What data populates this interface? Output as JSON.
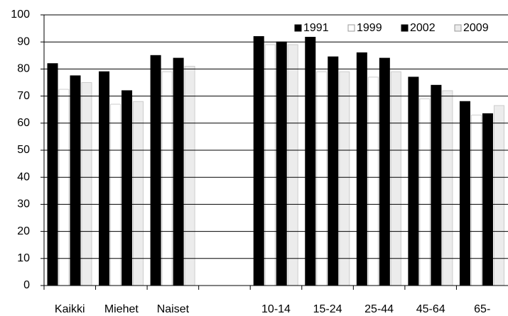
{
  "chart_data": {
    "type": "bar",
    "categories": [
      "Kaikki",
      "Miehet",
      "Naiset",
      null,
      "10-14",
      "15-24",
      "25-44",
      "45-64",
      "65-"
    ],
    "series": [
      {
        "name": "1991",
        "color": "#000000",
        "values": [
          82,
          79,
          85,
          null,
          92,
          92,
          86,
          77,
          68
        ]
      },
      {
        "name": "1999",
        "color": "#ffffff",
        "values": [
          72.5,
          67,
          79,
          null,
          89,
          79,
          77,
          69,
          63
        ]
      },
      {
        "name": "2002",
        "color": "#000000",
        "values": [
          77.5,
          72,
          84,
          null,
          90,
          84.5,
          84,
          74,
          63.5
        ]
      },
      {
        "name": "2009",
        "color": "#ececec",
        "values": [
          75,
          68,
          81,
          null,
          89,
          79,
          79,
          72,
          66.5
        ]
      }
    ],
    "ylim": [
      0,
      100
    ],
    "yticks": [
      0,
      10,
      20,
      30,
      40,
      50,
      60,
      70,
      80,
      90,
      100
    ],
    "grid": true,
    "legend": "upper right"
  }
}
